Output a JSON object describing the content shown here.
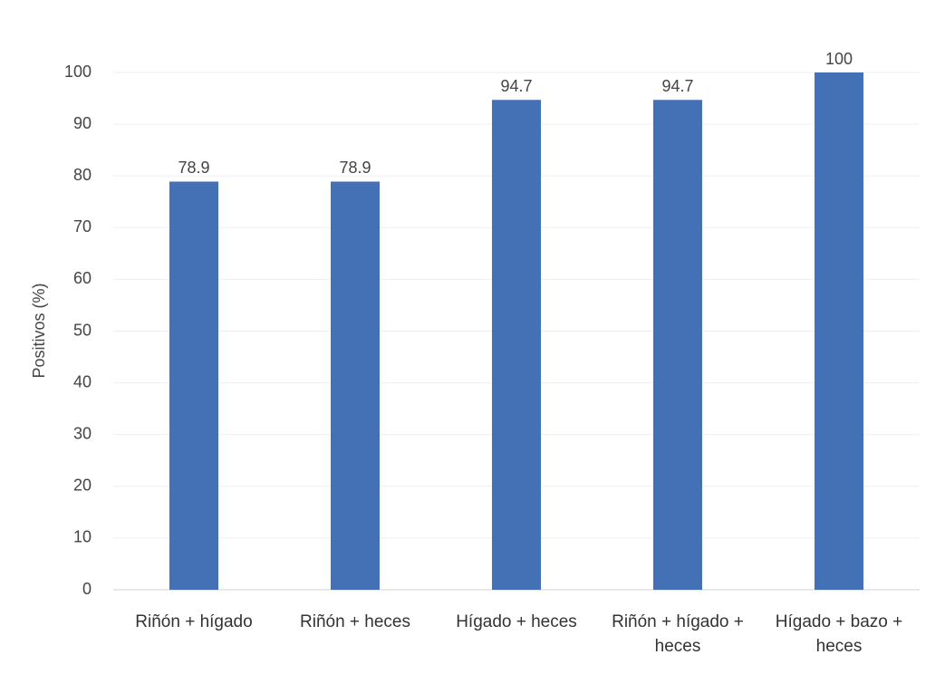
{
  "chart_data": {
    "type": "bar",
    "y_label": "Positivos (%)",
    "categories": [
      "Riñón + hígado",
      "Riñón + heces",
      "Hígado + heces",
      "Riñón + hígado + heces",
      "Hígado + bazo + heces"
    ],
    "values": [
      78.9,
      78.9,
      94.7,
      94.7,
      100
    ],
    "color": "#4470b5",
    "ylim": [
      0,
      100
    ],
    "yticks": [
      0,
      10,
      20,
      30,
      40,
      50,
      60,
      70,
      80,
      90,
      100
    ],
    "grid": true
  }
}
